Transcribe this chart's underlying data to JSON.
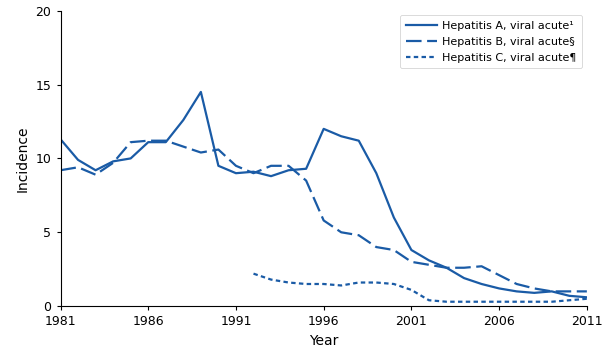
{
  "years_A": [
    1981,
    1982,
    1983,
    1984,
    1985,
    1986,
    1987,
    1988,
    1989,
    1990,
    1991,
    1992,
    1993,
    1994,
    1995,
    1996,
    1997,
    1998,
    1999,
    2000,
    2001,
    2002,
    2003,
    2004,
    2005,
    2006,
    2007,
    2008,
    2009,
    2010,
    2011
  ],
  "hep_A": [
    11.3,
    9.9,
    9.2,
    9.8,
    10.0,
    11.1,
    11.1,
    12.6,
    14.5,
    9.5,
    9.0,
    9.1,
    8.8,
    9.2,
    9.3,
    12.0,
    11.5,
    11.2,
    9.0,
    6.0,
    3.8,
    3.1,
    2.6,
    1.9,
    1.5,
    1.2,
    1.0,
    0.9,
    1.0,
    0.7,
    0.6
  ],
  "years_B": [
    1981,
    1982,
    1983,
    1984,
    1985,
    1986,
    1987,
    1988,
    1989,
    1990,
    1991,
    1992,
    1993,
    1994,
    1995,
    1996,
    1997,
    1998,
    1999,
    2000,
    2001,
    2002,
    2003,
    2004,
    2005,
    2006,
    2007,
    2008,
    2009,
    2010,
    2011
  ],
  "hep_B": [
    9.2,
    9.4,
    8.9,
    9.7,
    11.1,
    11.2,
    11.2,
    10.8,
    10.4,
    10.6,
    9.5,
    9.0,
    9.5,
    9.5,
    8.5,
    5.8,
    5.0,
    4.8,
    4.0,
    3.8,
    3.0,
    2.8,
    2.6,
    2.6,
    2.7,
    2.1,
    1.5,
    1.2,
    1.0,
    1.0,
    1.0
  ],
  "years_C": [
    1992,
    1993,
    1994,
    1995,
    1996,
    1997,
    1998,
    1999,
    2000,
    2001,
    2002,
    2003,
    2004,
    2005,
    2006,
    2007,
    2008,
    2009,
    2010,
    2011
  ],
  "hep_C": [
    2.2,
    1.8,
    1.6,
    1.5,
    1.5,
    1.4,
    1.6,
    1.6,
    1.5,
    1.1,
    0.4,
    0.3,
    0.3,
    0.3,
    0.3,
    0.3,
    0.3,
    0.3,
    0.4,
    0.5
  ],
  "line_color": "#1a5ba6",
  "xlabel": "Year",
  "ylabel": "Incidence",
  "ylim": [
    0,
    20
  ],
  "yticks": [
    0,
    5,
    10,
    15,
    20
  ],
  "xticks": [
    1981,
    1986,
    1991,
    1996,
    2001,
    2006,
    2011
  ],
  "legend_A": "Hepatitis A, viral acute¹",
  "legend_B": "Hepatitis B, viral acute§",
  "legend_C": "Hepatitis C, viral acute¶"
}
